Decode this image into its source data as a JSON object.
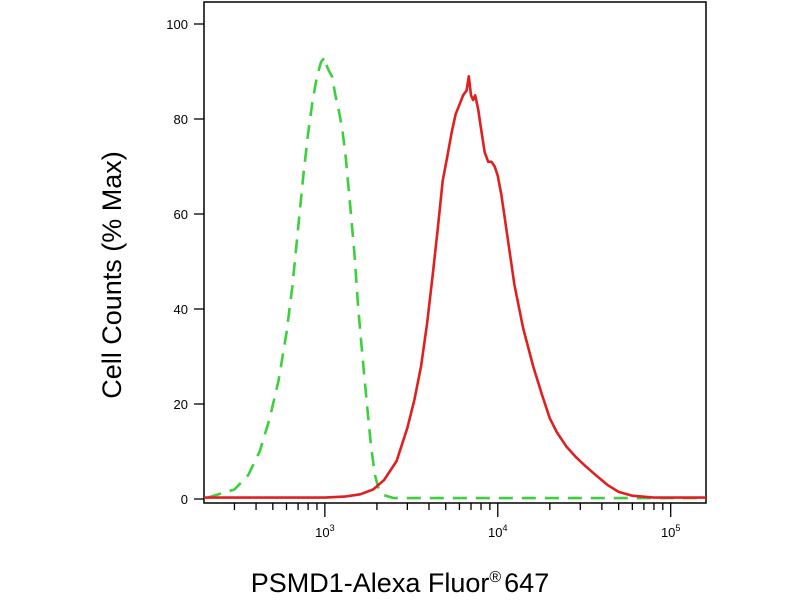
{
  "chart_data": {
    "type": "line",
    "xlabel": "PSMD1-Alexa Fluor",
    "xlabel_sup": "®",
    "xlabel_suffix": "647",
    "ylabel": "Cell Counts (% Max)",
    "x_scale": "log",
    "xlim": [
      200,
      160000
    ],
    "ylim": [
      0,
      100
    ],
    "x_ticks": [
      {
        "value": 1000,
        "base": "10",
        "exp": "3"
      },
      {
        "value": 10000,
        "base": "10",
        "exp": "4"
      },
      {
        "value": 100000,
        "base": "10",
        "exp": "5"
      }
    ],
    "y_ticks": [
      0,
      20,
      40,
      60,
      80,
      100
    ],
    "grid": false,
    "series": [
      {
        "color": "#3cd03c",
        "dash": "dashed",
        "x": [
          210,
          300,
          360,
          420,
          480,
          540,
          600,
          650,
          700,
          750,
          800,
          850,
          900,
          950,
          1000,
          1030,
          1060,
          1100,
          1150,
          1200,
          1260,
          1320,
          1400,
          1480,
          1560,
          1650,
          1750,
          1850,
          1950,
          2050,
          2200,
          2500,
          4000,
          8000,
          20000,
          60000,
          160000
        ],
        "y": [
          0.3,
          2,
          5,
          10,
          17,
          25,
          35,
          45,
          57,
          68,
          77,
          84,
          89,
          92,
          93,
          91,
          90,
          89,
          85,
          82,
          78,
          72,
          62,
          52,
          40,
          30,
          20,
          11,
          5,
          2,
          0.8,
          0.2,
          0.2,
          0.2,
          0.2,
          0.2,
          0.2
        ]
      },
      {
        "color": "#e02020",
        "dash": "solid",
        "x": [
          200,
          1000,
          1300,
          1600,
          1900,
          2200,
          2600,
          3000,
          3300,
          3600,
          3900,
          4200,
          4500,
          4800,
          5100,
          5400,
          5700,
          6000,
          6300,
          6600,
          6800,
          7000,
          7200,
          7400,
          7700,
          8000,
          8400,
          8800,
          9200,
          9600,
          10000,
          10500,
          11500,
          12500,
          14000,
          16000,
          18000,
          20000,
          22000,
          25000,
          28000,
          32000,
          37000,
          43000,
          50000,
          60000,
          80000,
          160000
        ],
        "y": [
          0.3,
          0.3,
          0.5,
          1,
          2,
          4,
          8,
          15,
          21,
          28,
          37,
          47,
          57,
          67,
          72,
          77,
          81,
          83,
          85,
          86,
          89,
          85,
          84,
          85,
          82,
          78,
          73,
          71,
          71,
          70,
          68,
          64,
          54,
          45,
          36,
          28,
          22,
          17,
          14,
          11,
          9,
          7,
          5,
          3,
          1.5,
          0.7,
          0.3,
          0.3
        ]
      }
    ]
  }
}
